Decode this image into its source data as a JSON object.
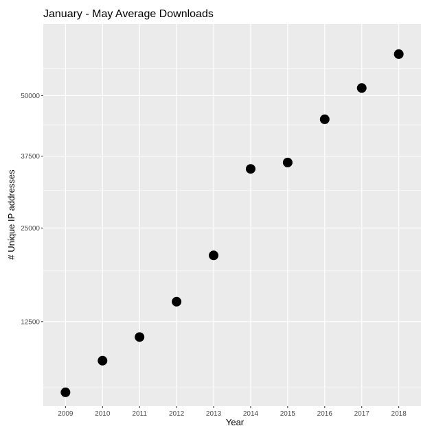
{
  "chart_data": {
    "type": "scatter",
    "title": "January - May Average Downloads",
    "xlabel": "Year",
    "ylabel": "# Unique IP addresses",
    "x": [
      "2009",
      "2010",
      "2011",
      "2012",
      "2013",
      "2014",
      "2015",
      "2016",
      "2017",
      "2018"
    ],
    "y": [
      5900,
      8550,
      10850,
      14800,
      20900,
      35100,
      36300,
      44900,
      51700,
      59600
    ],
    "y_scale": "sqrt",
    "y_ticks": [
      12500,
      25000,
      37500,
      50000
    ],
    "y_tick_labels": [
      "12500",
      "25000",
      "37500",
      "50000"
    ],
    "ylim": [
      4900,
      67100
    ],
    "grid": true,
    "colors": {
      "panel": "#ebebeb",
      "grid": "#ffffff",
      "point": "#000000"
    }
  }
}
